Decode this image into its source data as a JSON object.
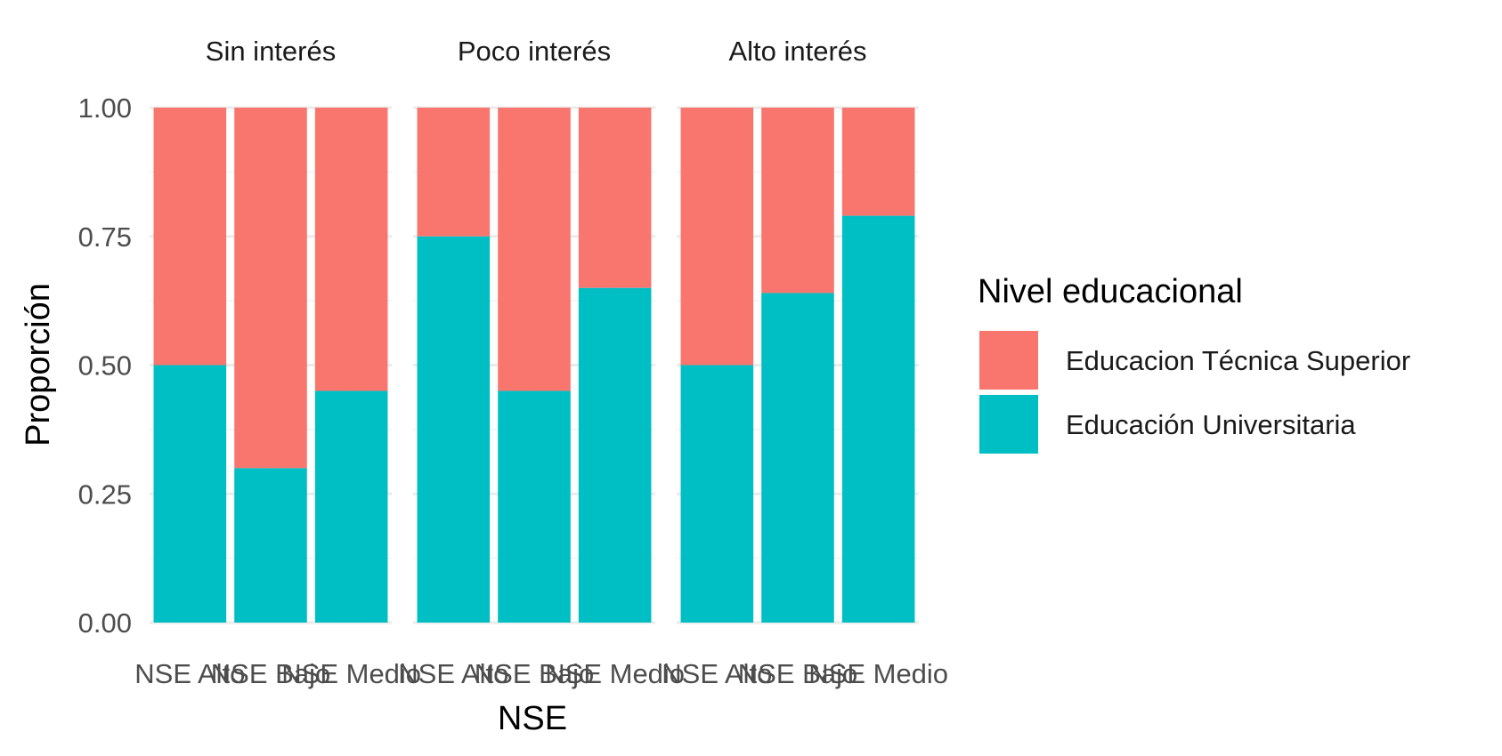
{
  "chart_data": {
    "type": "bar",
    "stacked": true,
    "facets": [
      "Sin interés",
      "Poco interés",
      "Alto interés"
    ],
    "categories": [
      "NSE Alto",
      "NSE Bajo",
      "NSE Medio"
    ],
    "xlabel": "NSE",
    "ylabel": "Proporción",
    "ylim": [
      0,
      1
    ],
    "yticks": [
      "0.00",
      "0.25",
      "0.50",
      "0.75",
      "1.00"
    ],
    "grid": true,
    "legend": {
      "title": "Nivel educacional",
      "position": "right",
      "items": [
        {
          "label": "Educacion Técnica Superior",
          "color": "#F8766D"
        },
        {
          "label": "Educación Universitaria",
          "color": "#00BFC4"
        }
      ]
    },
    "series": [
      {
        "name": "Educación Universitaria",
        "color": "#00BFC4",
        "values": [
          [
            0.5,
            0.3,
            0.45
          ],
          [
            0.75,
            0.45,
            0.65
          ],
          [
            0.5,
            0.64,
            0.79
          ]
        ]
      },
      {
        "name": "Educacion Técnica Superior",
        "color": "#F8766D",
        "values": [
          [
            0.5,
            0.7,
            0.55
          ],
          [
            0.25,
            0.55,
            0.35
          ],
          [
            0.5,
            0.36,
            0.21
          ]
        ]
      }
    ]
  }
}
